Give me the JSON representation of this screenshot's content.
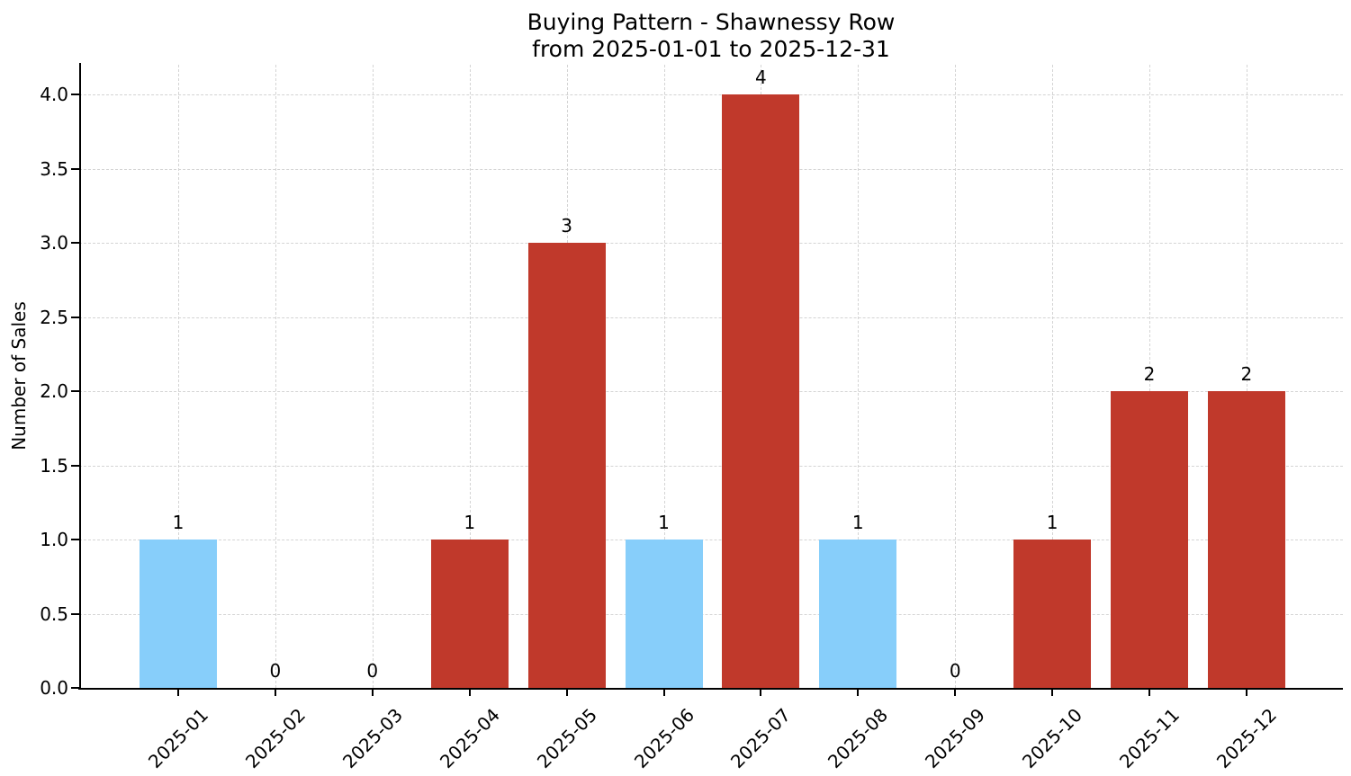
{
  "chart": {
    "title_lines": [
      "Buying Pattern - Shawnessy Row",
      "from 2025-01-01 to 2025-12-31"
    ]
  },
  "chart_data": {
    "type": "bar",
    "title": "Buying Pattern - Shawnessy Row\nfrom 2025-01-01 to 2025-12-31",
    "xlabel": "",
    "ylabel": "Number of Sales",
    "categories": [
      "2025-01",
      "2025-02",
      "2025-03",
      "2025-04",
      "2025-05",
      "2025-06",
      "2025-07",
      "2025-08",
      "2025-09",
      "2025-10",
      "2025-11",
      "2025-12"
    ],
    "values": [
      1,
      0,
      0,
      1,
      3,
      1,
      4,
      1,
      0,
      1,
      2,
      2
    ],
    "value_labels": [
      "1",
      "0",
      "0",
      "1",
      "3",
      "1",
      "4",
      "1",
      "0",
      "1",
      "2",
      "2"
    ],
    "bar_colors": [
      "#87CEFA",
      null,
      null,
      "#C0392B",
      "#C0392B",
      "#87CEFA",
      "#C0392B",
      "#87CEFA",
      null,
      "#C0392B",
      "#C0392B",
      "#C0392B"
    ],
    "ytick_labels": [
      "0.0",
      "0.5",
      "1.0",
      "1.5",
      "2.0",
      "2.5",
      "3.0",
      "3.5",
      "4.0"
    ],
    "ylim": [
      0,
      4.2
    ],
    "grid": true,
    "grid_style": "dashed",
    "x_tick_rotation": 45,
    "legend": null
  },
  "colors": {
    "highlight_bar": "#87CEFA",
    "default_bar": "#C0392B",
    "grid": "#d4d4d4",
    "axis": "#000000",
    "text": "#000000",
    "background": "#ffffff"
  }
}
